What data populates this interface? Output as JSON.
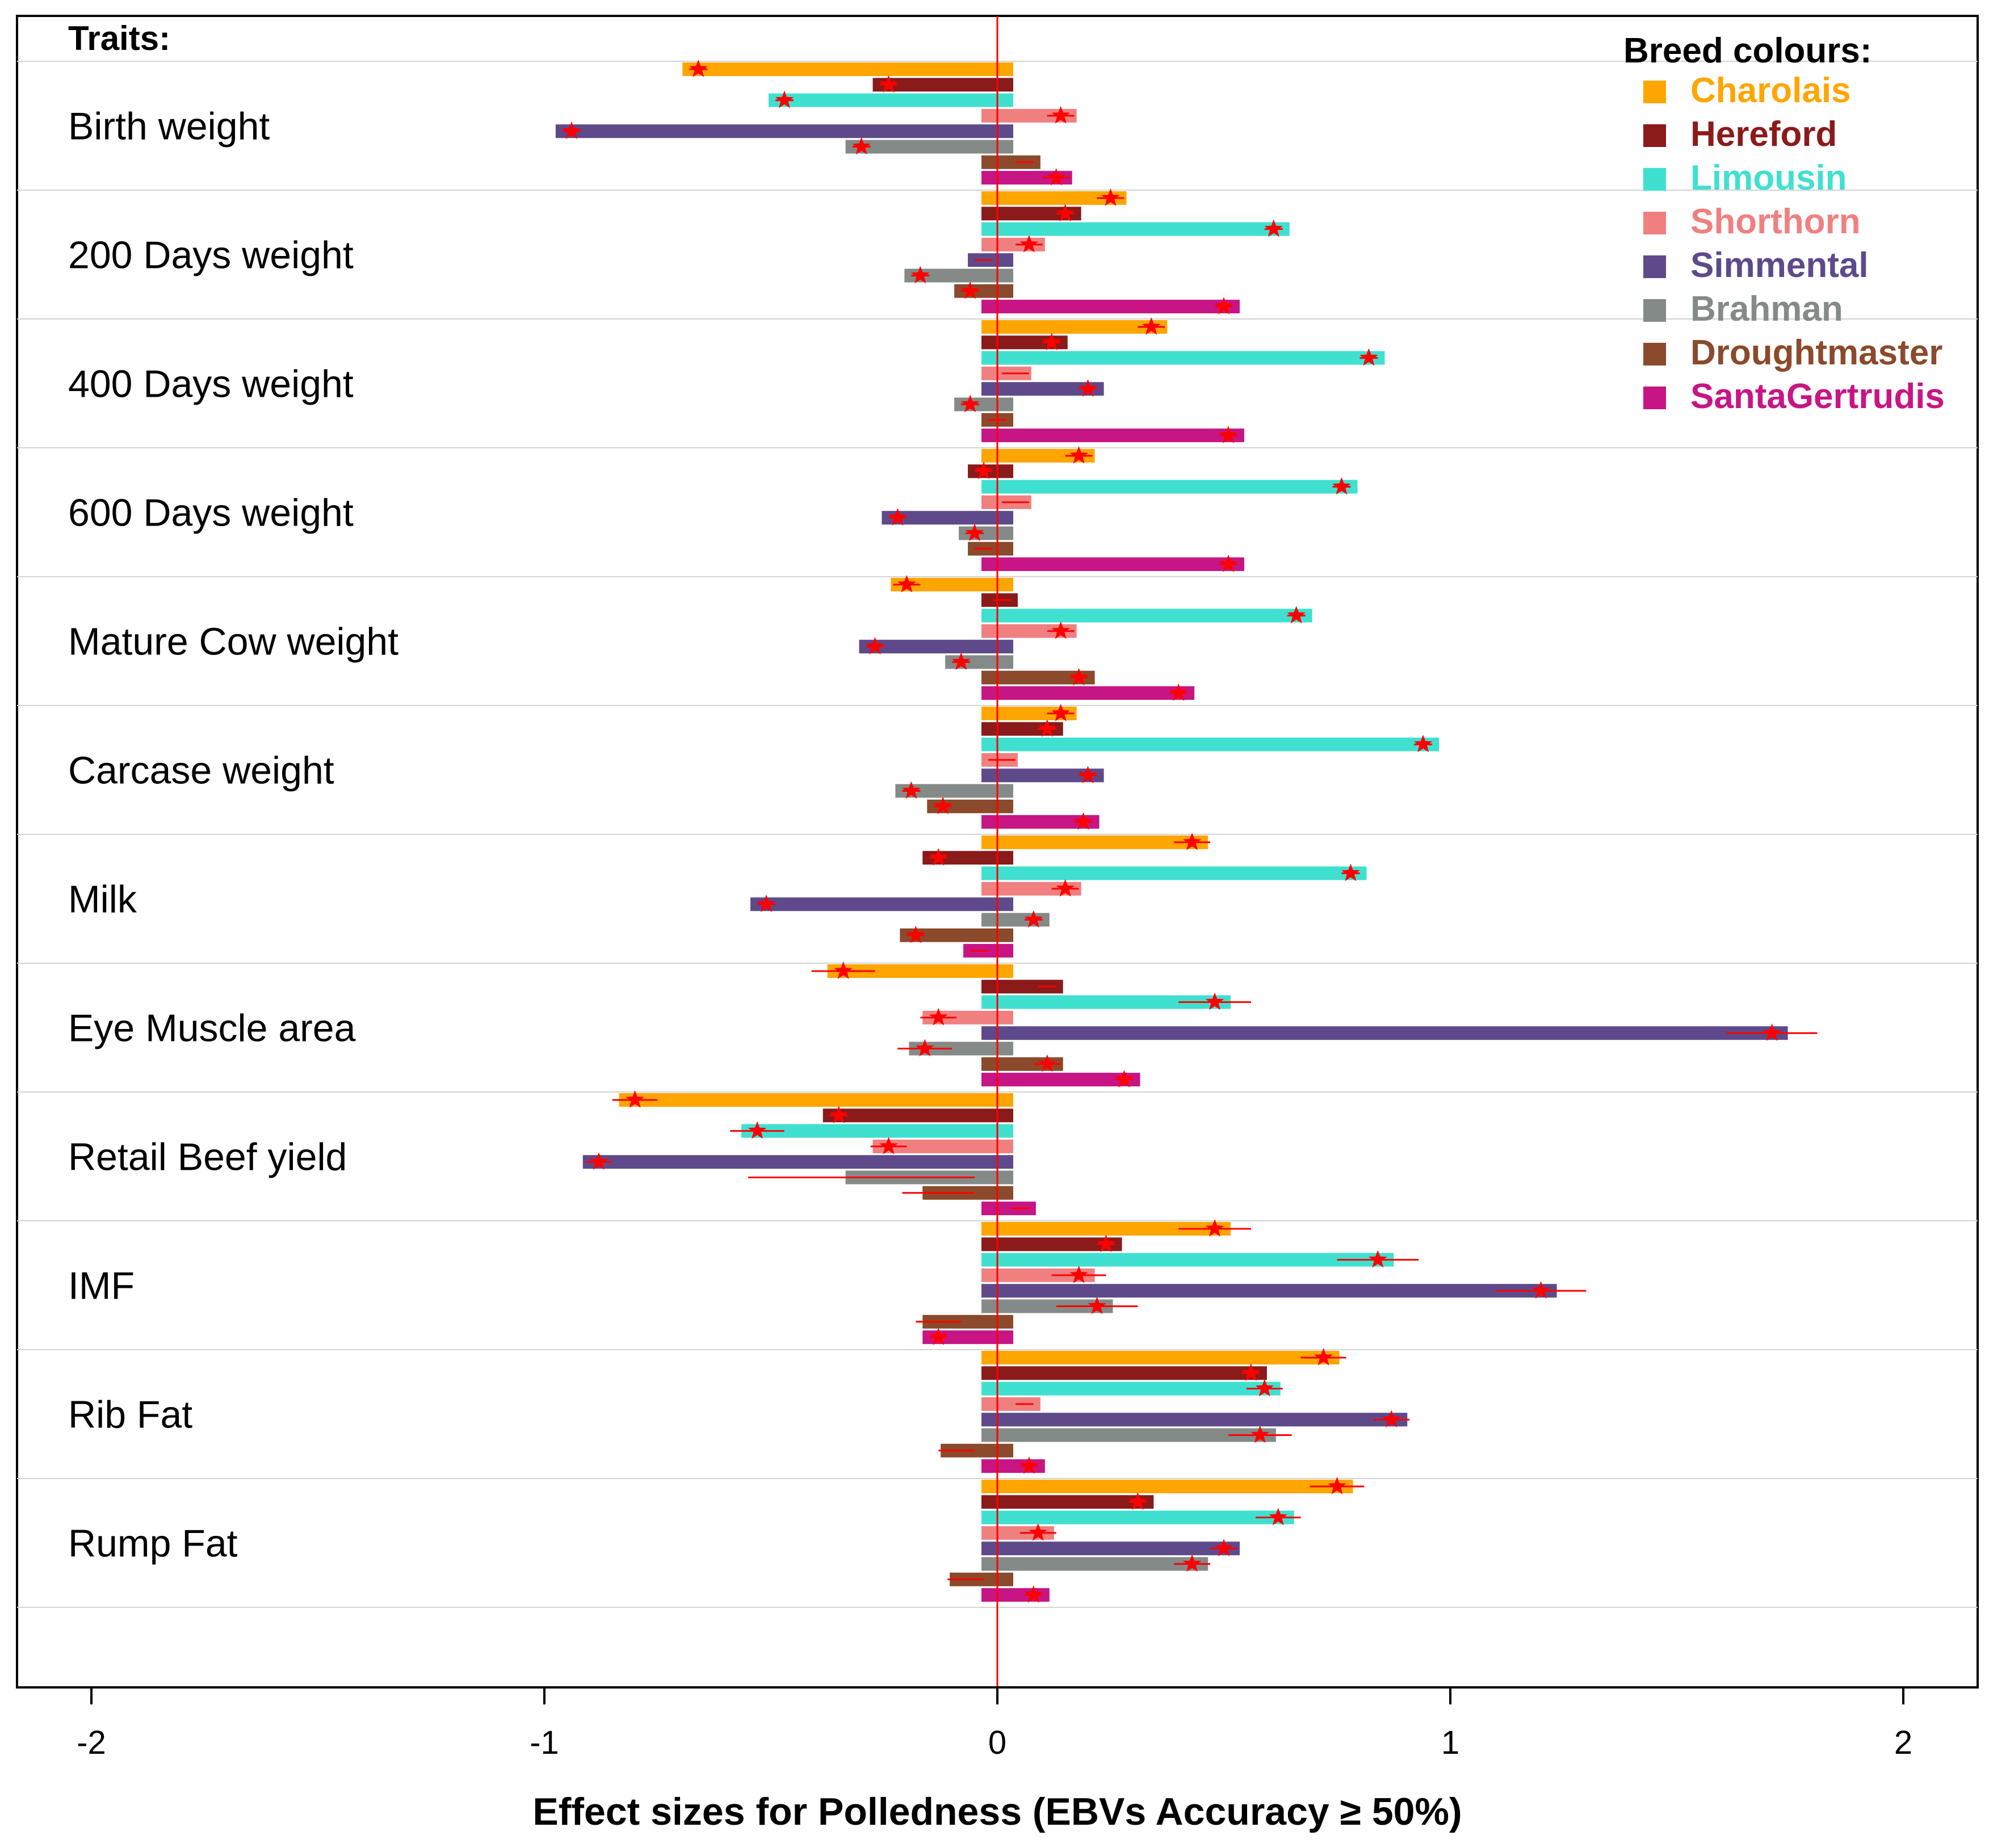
{
  "chart_data": {
    "type": "bar",
    "orientation": "horizontal",
    "xlabel": "Effect sizes for Polledness (EBVs Accuracy ≥ 50%)",
    "xlim": [
      -2.2,
      2.2
    ],
    "xticks": [
      "-2",
      "-1",
      "0",
      "1",
      "2"
    ],
    "xtick_values": [
      -2,
      -1,
      0,
      1,
      2
    ],
    "traits_title": "Traits:",
    "legend_title": "Breed colours:",
    "legend_position": "top-right",
    "breeds": [
      {
        "name": "Charolais",
        "color": "#FFA500"
      },
      {
        "name": "Hereford",
        "color": "#8B1A1A"
      },
      {
        "name": "Limousin",
        "color": "#40E0D0"
      },
      {
        "name": "Shorthorn",
        "color": "#F08080"
      },
      {
        "name": "Simmental",
        "color": "#5E4A8B"
      },
      {
        "name": "Brahman",
        "color": "#848A87"
      },
      {
        "name": "Droughtmaster",
        "color": "#8B4A2B"
      },
      {
        "name": "SantaGertrudis",
        "color": "#C71585"
      }
    ],
    "categories": [
      "Birth weight",
      "200 Days weight",
      "400 Days weight",
      "600 Days weight",
      "Mature Cow weight",
      "Carcase weight",
      "Milk",
      "Eye Muscle area",
      "Retail Beef yield",
      "IMF",
      "Rib Fat",
      "Rump Fat"
    ],
    "traits": [
      {
        "name": "Birth weight",
        "values": [
          -0.66,
          -0.24,
          -0.47,
          0.14,
          -0.94,
          -0.3,
          0.06,
          0.13
        ],
        "errors": [
          0.02,
          0.02,
          0.02,
          0.03,
          0.02,
          0.02,
          0.02,
          0.03
        ],
        "sig": [
          true,
          true,
          true,
          true,
          true,
          true,
          false,
          true
        ]
      },
      {
        "name": "200 Days weight",
        "values": [
          0.25,
          0.15,
          0.61,
          0.07,
          -0.03,
          -0.17,
          -0.06,
          0.5
        ],
        "errors": [
          0.03,
          0.02,
          0.02,
          0.03,
          0.02,
          0.02,
          0.02,
          0.02
        ],
        "sig": [
          true,
          true,
          true,
          true,
          false,
          true,
          true,
          true
        ]
      },
      {
        "name": "400 Days weight",
        "values": [
          0.34,
          0.12,
          0.82,
          0.04,
          0.2,
          -0.06,
          0.0,
          0.51
        ],
        "errors": [
          0.03,
          0.02,
          0.02,
          0.03,
          0.02,
          0.02,
          0.02,
          0.02
        ],
        "sig": [
          true,
          true,
          true,
          false,
          true,
          true,
          false,
          true
        ]
      },
      {
        "name": "600 Days weight",
        "values": [
          0.18,
          -0.03,
          0.76,
          0.04,
          -0.22,
          -0.05,
          -0.03,
          0.51
        ],
        "errors": [
          0.03,
          0.02,
          0.02,
          0.03,
          0.02,
          0.02,
          0.02,
          0.02
        ],
        "sig": [
          true,
          true,
          true,
          false,
          true,
          true,
          false,
          true
        ]
      },
      {
        "name": "Mature Cow weight",
        "values": [
          -0.2,
          0.01,
          0.66,
          0.14,
          -0.27,
          -0.08,
          0.18,
          0.4
        ],
        "errors": [
          0.03,
          0.02,
          0.02,
          0.03,
          0.02,
          0.02,
          0.02,
          0.02
        ],
        "sig": [
          true,
          false,
          true,
          true,
          true,
          true,
          true,
          true
        ]
      },
      {
        "name": "Carcase weight",
        "values": [
          0.14,
          0.11,
          0.94,
          0.01,
          0.2,
          -0.19,
          -0.12,
          0.19
        ],
        "errors": [
          0.03,
          0.02,
          0.02,
          0.03,
          0.02,
          0.02,
          0.02,
          0.02
        ],
        "sig": [
          true,
          true,
          true,
          false,
          true,
          true,
          true,
          true
        ]
      },
      {
        "name": "Milk",
        "values": [
          0.43,
          -0.13,
          0.78,
          0.15,
          -0.51,
          0.08,
          -0.18,
          -0.04
        ],
        "errors": [
          0.04,
          0.02,
          0.02,
          0.03,
          0.02,
          0.02,
          0.02,
          0.02
        ],
        "sig": [
          true,
          true,
          true,
          true,
          true,
          true,
          true,
          false
        ]
      },
      {
        "name": "Eye Muscle area",
        "values": [
          -0.34,
          0.11,
          0.48,
          -0.13,
          1.71,
          -0.16,
          0.11,
          0.28
        ],
        "errors": [
          0.07,
          0.02,
          0.08,
          0.04,
          0.1,
          0.06,
          0.03,
          0.02
        ],
        "sig": [
          true,
          false,
          true,
          true,
          true,
          true,
          true,
          true
        ]
      },
      {
        "name": "Retail Beef yield",
        "values": [
          -0.8,
          -0.35,
          -0.53,
          -0.24,
          -0.88,
          -0.3,
          -0.13,
          0.05
        ],
        "errors": [
          0.05,
          0.02,
          0.06,
          0.04,
          0.03,
          0.25,
          0.08,
          0.02
        ],
        "sig": [
          true,
          true,
          true,
          true,
          true,
          false,
          false,
          false
        ]
      },
      {
        "name": "IMF",
        "values": [
          0.48,
          0.24,
          0.84,
          0.18,
          1.2,
          0.22,
          -0.13,
          -0.13
        ],
        "errors": [
          0.08,
          0.02,
          0.09,
          0.06,
          0.1,
          0.09,
          0.05,
          0.02
        ],
        "sig": [
          true,
          true,
          true,
          true,
          true,
          true,
          false,
          true
        ]
      },
      {
        "name": "Rib Fat",
        "values": [
          0.72,
          0.56,
          0.59,
          0.06,
          0.87,
          0.58,
          -0.09,
          0.07
        ],
        "errors": [
          0.05,
          0.02,
          0.04,
          0.02,
          0.04,
          0.07,
          0.04,
          0.02
        ],
        "sig": [
          true,
          true,
          true,
          false,
          true,
          true,
          false,
          true
        ]
      },
      {
        "name": "Rump Fat",
        "values": [
          0.75,
          0.31,
          0.62,
          0.09,
          0.5,
          0.43,
          -0.07,
          0.08
        ],
        "errors": [
          0.06,
          0.02,
          0.05,
          0.04,
          0.03,
          0.04,
          0.04,
          0.02
        ],
        "sig": [
          true,
          true,
          true,
          true,
          true,
          true,
          false,
          true
        ]
      }
    ]
  }
}
